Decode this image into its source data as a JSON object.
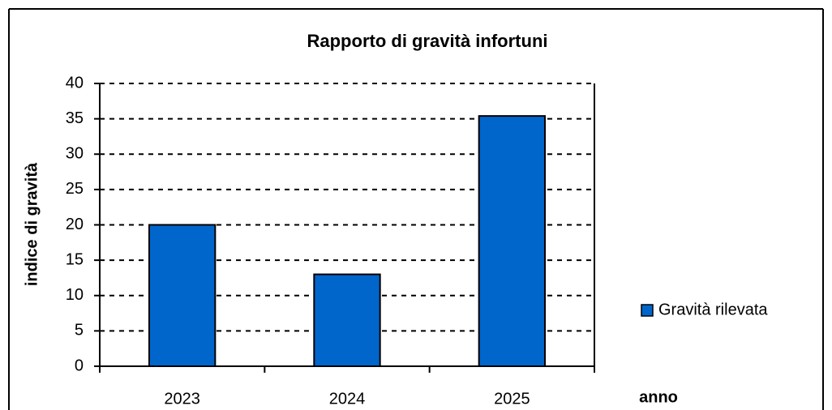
{
  "chart_data": {
    "type": "bar",
    "title": "Rapporto di gravità infortuni",
    "x_label": "anno",
    "y_label": "indice di gravità",
    "categories": [
      "2023",
      "2024",
      "2025"
    ],
    "series": [
      {
        "name": "Gravità rilevata",
        "color": "#0066cc",
        "values": [
          20,
          13,
          35.4
        ]
      }
    ],
    "ylim": [
      0,
      40
    ],
    "yticks": [
      0,
      5,
      10,
      15,
      20,
      25,
      30,
      35,
      40
    ],
    "grid": true,
    "legend": "right"
  }
}
